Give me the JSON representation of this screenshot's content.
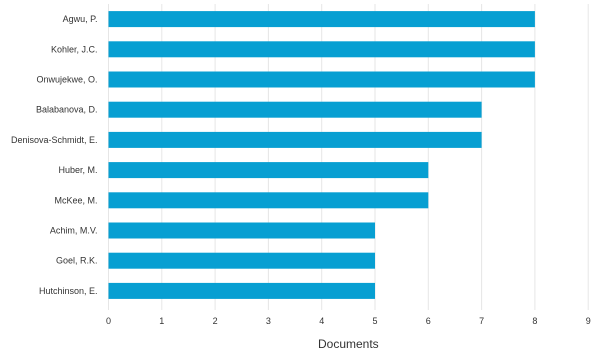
{
  "chart_data": {
    "type": "bar",
    "orientation": "horizontal",
    "categories": [
      "Agwu, P.",
      "Kohler, J.C.",
      "Onwujekwe, O.",
      "Balabanova, D.",
      "Denisova-Schmidt, E.",
      "Huber, M.",
      "McKee, M.",
      "Achim, M.V.",
      "Goel, R.K.",
      "Hutchinson, E."
    ],
    "values": [
      8,
      8,
      8,
      7,
      7,
      6,
      6,
      5,
      5,
      5
    ],
    "xlabel": "Documents",
    "ylabel": "",
    "xlim": [
      0,
      9
    ],
    "xticks": [
      "0",
      "1",
      "2",
      "3",
      "4",
      "5",
      "6",
      "7",
      "8",
      "9"
    ],
    "grid": "vertical",
    "bar_color": "#079fd2"
  }
}
